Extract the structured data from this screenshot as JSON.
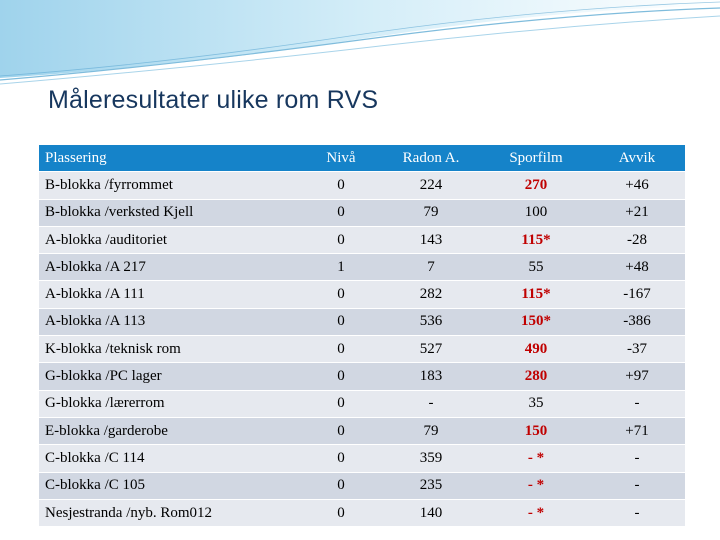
{
  "title": "Måleresultater ulike rom RVS",
  "colors": {
    "header_bg": "#1583c9",
    "row_light": "#e6e9ef",
    "row_dark": "#d1d7e2",
    "highlight": "#c00000",
    "title": "#17375e"
  },
  "table": {
    "headers": [
      "Plassering",
      "Nivå",
      "Radon A.",
      "Sporfilm",
      "Avvik"
    ],
    "rows": [
      {
        "plassering": "B-blokka /fyrrommet",
        "niva": "0",
        "radon": "224",
        "sporfilm": "270",
        "sporfilm_red": true,
        "avvik": "+46"
      },
      {
        "plassering": "B-blokka /verksted Kjell",
        "niva": "0",
        "radon": "79",
        "sporfilm": "100",
        "sporfilm_red": false,
        "avvik": "+21"
      },
      {
        "plassering": "A-blokka /auditoriet",
        "niva": "0",
        "radon": "143",
        "sporfilm": "115*",
        "sporfilm_red": true,
        "avvik": "-28"
      },
      {
        "plassering": "A-blokka /A 217",
        "niva": "1",
        "radon": "7",
        "sporfilm": "55",
        "sporfilm_red": false,
        "avvik": "+48"
      },
      {
        "plassering": "A-blokka /A 111",
        "niva": "0",
        "radon": "282",
        "sporfilm": "115*",
        "sporfilm_red": true,
        "avvik": "-167"
      },
      {
        "plassering": "A-blokka /A 113",
        "niva": "0",
        "radon": "536",
        "sporfilm": "150*",
        "sporfilm_red": true,
        "avvik": "-386"
      },
      {
        "plassering": "K-blokka /teknisk rom",
        "niva": "0",
        "radon": "527",
        "sporfilm": "490",
        "sporfilm_red": true,
        "avvik": "-37"
      },
      {
        "plassering": "G-blokka /PC lager",
        "niva": "0",
        "radon": "183",
        "sporfilm": "280",
        "sporfilm_red": true,
        "avvik": "+97"
      },
      {
        "plassering": "G-blokka /lærerrom",
        "niva": "0",
        "radon": "-",
        "sporfilm": "35",
        "sporfilm_red": false,
        "avvik": "-"
      },
      {
        "plassering": "E-blokka /garderobe",
        "niva": "0",
        "radon": "79",
        "sporfilm": "150",
        "sporfilm_red": true,
        "avvik": "+71"
      },
      {
        "plassering": "C-blokka /C 114",
        "niva": "0",
        "radon": "359",
        "sporfilm": "- *",
        "sporfilm_red": true,
        "avvik": "-"
      },
      {
        "plassering": "C-blokka /C 105",
        "niva": "0",
        "radon": "235",
        "sporfilm": "- *",
        "sporfilm_red": true,
        "avvik": "-"
      },
      {
        "plassering": "Nesjestranda /nyb. Rom012",
        "niva": "0",
        "radon": "140",
        "sporfilm": "- *",
        "sporfilm_red": true,
        "avvik": "-"
      }
    ]
  }
}
